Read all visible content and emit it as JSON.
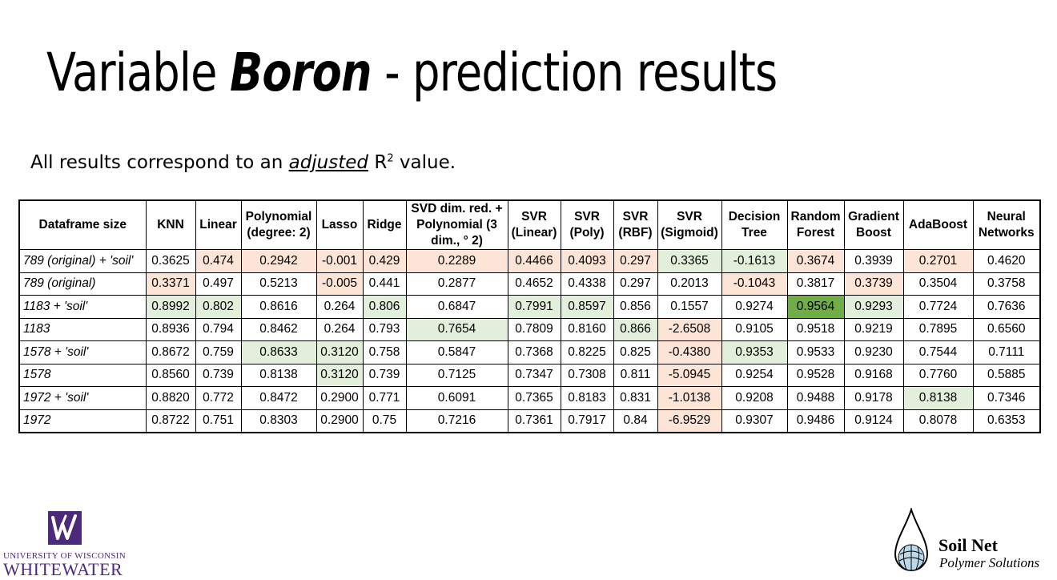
{
  "slide": {
    "title_prefix": "Variable ",
    "title_emphasis": "Boron",
    "title_suffix": " - prediction results",
    "note_prefix": "All results correspond to an ",
    "note_emphasis": "adjusted",
    "note_r": " R",
    "note_sup": "2",
    "note_suffix": " value."
  },
  "colors": {
    "highlight_low": "#fce4d6",
    "highlight_high": "#e2efda",
    "highlight_best": "#70ad47",
    "uw_purple": "#4b2a7b"
  },
  "table": {
    "headers": [
      "Dataframe size",
      "KNN",
      "Linear",
      "Polynomial (degree: 2)",
      "Lasso",
      "Ridge",
      "SVD dim. red. + Polynomial (3 dim., ° 2)",
      "SVR (Linear)",
      "SVR (Poly)",
      "SVR (RBF)",
      "SVR (Sigmoid)",
      "Decision Tree",
      "Random Forest",
      "Gradient Boost",
      "AdaBoost",
      "Neural Networks"
    ],
    "rows": [
      {
        "label": "789 (original) + 'soil'",
        "values": [
          "0.3625",
          "0.474",
          "0.2942",
          "-0.001",
          "0.429",
          "0.2289",
          "0.4466",
          "0.4093",
          "0.297",
          "0.3365",
          "-0.1613",
          "0.3674",
          "0.3939",
          "0.2701",
          "0.4620"
        ],
        "highlight": [
          "",
          "low",
          "low",
          "low",
          "low",
          "low",
          "low",
          "low",
          "low",
          "high",
          "high",
          "low",
          "",
          "low",
          ""
        ]
      },
      {
        "label": "789 (original)",
        "values": [
          "0.3371",
          "0.497",
          "0.5213",
          "-0.005",
          "0.441",
          "0.2877",
          "0.4652",
          "0.4338",
          "0.297",
          "0.2013",
          "-0.1043",
          "0.3817",
          "0.3739",
          "0.3504",
          "0.3758"
        ],
        "highlight": [
          "low",
          "",
          "",
          "low",
          "",
          "",
          "",
          "",
          "",
          "",
          "low",
          "",
          "low",
          "",
          ""
        ]
      },
      {
        "label": "1183 + 'soil'",
        "values": [
          "0.8992",
          "0.802",
          "0.8616",
          "0.264",
          "0.806",
          "0.6847",
          "0.7991",
          "0.8597",
          "0.856",
          "0.1557",
          "0.9274",
          "0.9564",
          "0.9293",
          "0.7724",
          "0.7636"
        ],
        "highlight": [
          "high",
          "high",
          "",
          "",
          "high",
          "",
          "high",
          "high",
          "",
          "",
          "",
          "best",
          "high",
          "",
          ""
        ]
      },
      {
        "label": "1183",
        "values": [
          "0.8936",
          "0.794",
          "0.8462",
          "0.264",
          "0.793",
          "0.7654",
          "0.7809",
          "0.8160",
          "0.866",
          "-2.6508",
          "0.9105",
          "0.9518",
          "0.9219",
          "0.7895",
          "0.6560"
        ],
        "highlight": [
          "",
          "",
          "",
          "",
          "",
          "high",
          "",
          "",
          "high",
          "low",
          "",
          "",
          "",
          "",
          ""
        ]
      },
      {
        "label": "1578 + 'soil'",
        "values": [
          "0.8672",
          "0.759",
          "0.8633",
          "0.3120",
          "0.758",
          "0.5847",
          "0.7368",
          "0.8225",
          "0.825",
          "-0.4380",
          "0.9353",
          "0.9533",
          "0.9230",
          "0.7544",
          "0.7111"
        ],
        "highlight": [
          "",
          "",
          "high",
          "high",
          "",
          "",
          "",
          "",
          "",
          "low",
          "high",
          "",
          "",
          "",
          ""
        ]
      },
      {
        "label": "1578",
        "values": [
          "0.8560",
          "0.739",
          "0.8138",
          "0.3120",
          "0.739",
          "0.7125",
          "0.7347",
          "0.7308",
          "0.811",
          "-5.0945",
          "0.9254",
          "0.9528",
          "0.9168",
          "0.7760",
          "0.5885"
        ],
        "highlight": [
          "",
          "",
          "",
          "high",
          "",
          "",
          "",
          "",
          "",
          "low",
          "",
          "",
          "",
          "",
          ""
        ]
      },
      {
        "label": "1972 + 'soil'",
        "values": [
          "0.8820",
          "0.772",
          "0.8472",
          "0.2900",
          "0.771",
          "0.6091",
          "0.7365",
          "0.8183",
          "0.831",
          "-1.0138",
          "0.9208",
          "0.9488",
          "0.9178",
          "0.8138",
          "0.7346"
        ],
        "highlight": [
          "",
          "",
          "",
          "",
          "",
          "",
          "",
          "",
          "",
          "low",
          "",
          "",
          "",
          "high",
          ""
        ]
      },
      {
        "label": "1972",
        "values": [
          "0.8722",
          "0.751",
          "0.8303",
          "0.2900",
          "0.75",
          "0.7216",
          "0.7361",
          "0.7917",
          "0.84",
          "-6.9529",
          "0.9307",
          "0.9486",
          "0.9124",
          "0.8078",
          "0.6353"
        ],
        "highlight": [
          "",
          "",
          "",
          "",
          "",
          "",
          "",
          "",
          "",
          "low",
          "",
          "",
          "",
          "",
          ""
        ]
      }
    ]
  },
  "logos": {
    "uw_line1": "UNIVERSITY OF WISCONSIN",
    "uw_line2": "WHITEWATER",
    "uw_icon": "uw-w-icon",
    "soilnet_name": "Soil Net",
    "soilnet_sub": "Polymer Solutions",
    "soilnet_icon": "water-drop-globe-icon"
  }
}
